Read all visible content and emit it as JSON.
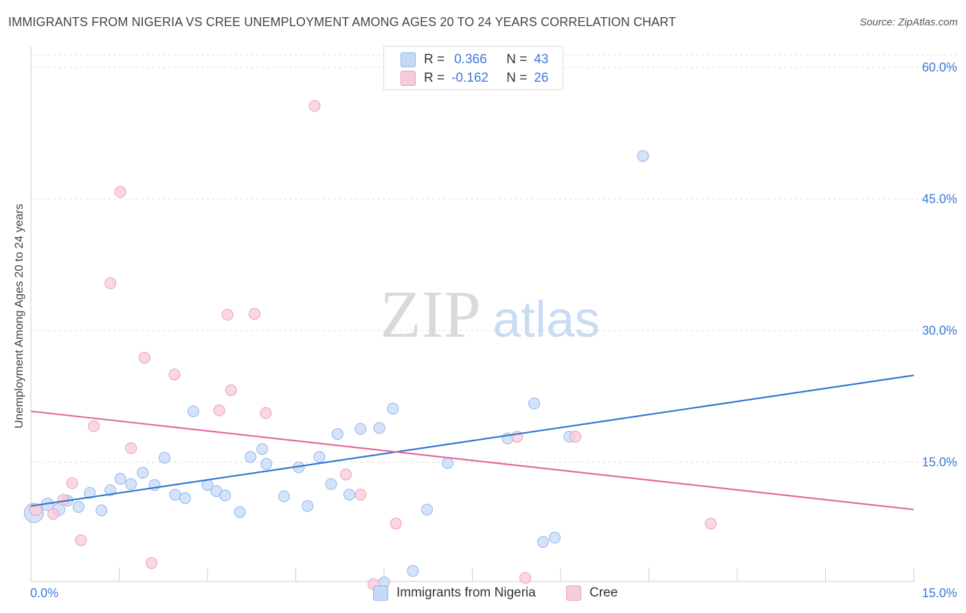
{
  "header": {
    "title": "IMMIGRANTS FROM NIGERIA VS CREE UNEMPLOYMENT AMONG AGES 20 TO 24 YEARS CORRELATION CHART",
    "source": "Source: ZipAtlas.com"
  },
  "watermark": {
    "zip": "ZIP",
    "atlas": "atlas"
  },
  "legend": {
    "rows": [
      {
        "r_label": "R =",
        "r_value": "0.366",
        "n_label": "N =",
        "n_value": "43"
      },
      {
        "r_label": "R =",
        "r_value": "-0.162",
        "n_label": "N =",
        "n_value": "26"
      }
    ]
  },
  "colors": {
    "blue_fill": "#c6daf7",
    "blue_stroke": "#8db4e8",
    "blue_line": "#2f74d0",
    "pink_fill": "#f8cbd9",
    "pink_stroke": "#ec9cb5",
    "pink_line": "#e3689a",
    "tick_text": "#3c78d8",
    "grid": "#dddddd"
  },
  "chart_data": {
    "type": "scatter",
    "title": "IMMIGRANTS FROM NIGERIA VS CREE UNEMPLOYMENT AMONG AGES 20 TO 24 YEARS CORRELATION CHART",
    "xlabel": "",
    "ylabel": "Unemployment Among Ages 20 to 24 years",
    "xlim": [
      0,
      15
    ],
    "ylim": [
      0,
      60
    ],
    "x_tick_labels": [
      "0.0%",
      "15.0%"
    ],
    "y_tick_labels": [
      "15.0%",
      "30.0%",
      "45.0%",
      "60.0%"
    ],
    "y_ticks": [
      15,
      30,
      45,
      60
    ],
    "grid": true,
    "legend_position": "bottom",
    "series": [
      {
        "name": "Immigrants from Nigeria",
        "color": "blue",
        "points": [
          [
            0.05,
            9.2,
            14
          ],
          [
            0.28,
            10.2,
            9
          ],
          [
            0.47,
            9.6,
            9
          ],
          [
            0.62,
            10.6,
            8
          ],
          [
            0.81,
            9.9,
            8
          ],
          [
            1.0,
            11.5,
            8
          ],
          [
            1.2,
            9.5,
            8
          ],
          [
            1.35,
            11.8,
            8
          ],
          [
            1.52,
            13.1,
            8
          ],
          [
            1.7,
            12.5,
            8
          ],
          [
            1.9,
            13.8,
            8
          ],
          [
            2.1,
            12.4,
            8
          ],
          [
            2.27,
            15.5,
            8
          ],
          [
            2.45,
            11.3,
            8
          ],
          [
            2.62,
            10.9,
            8
          ],
          [
            2.76,
            20.8,
            8
          ],
          [
            3.0,
            12.4,
            8
          ],
          [
            3.15,
            11.7,
            8
          ],
          [
            3.3,
            11.2,
            8
          ],
          [
            3.55,
            9.3,
            8
          ],
          [
            3.73,
            15.6,
            8
          ],
          [
            3.93,
            16.5,
            8
          ],
          [
            4.0,
            14.8,
            8
          ],
          [
            4.3,
            11.1,
            8
          ],
          [
            4.55,
            14.4,
            8
          ],
          [
            4.7,
            10.0,
            8
          ],
          [
            4.9,
            15.6,
            8
          ],
          [
            5.1,
            12.5,
            8
          ],
          [
            5.21,
            18.2,
            8
          ],
          [
            5.41,
            11.3,
            8
          ],
          [
            5.6,
            18.8,
            8
          ],
          [
            5.92,
            18.9,
            8
          ],
          [
            6.0,
            1.3,
            8
          ],
          [
            6.15,
            21.1,
            8
          ],
          [
            6.49,
            2.6,
            8
          ],
          [
            6.73,
            9.6,
            8
          ],
          [
            7.08,
            14.9,
            8
          ],
          [
            8.1,
            17.7,
            8
          ],
          [
            8.55,
            21.7,
            8
          ],
          [
            8.7,
            5.9,
            8
          ],
          [
            8.9,
            6.4,
            8
          ],
          [
            9.15,
            17.9,
            8
          ],
          [
            10.4,
            49.9,
            8
          ]
        ]
      },
      {
        "name": "Cree",
        "color": "pink",
        "points": [
          [
            0.08,
            9.6,
            9
          ],
          [
            0.38,
            9.1,
            8
          ],
          [
            0.55,
            10.7,
            8
          ],
          [
            0.7,
            12.6,
            8
          ],
          [
            0.85,
            6.1,
            8
          ],
          [
            1.07,
            19.1,
            8
          ],
          [
            1.35,
            35.4,
            8
          ],
          [
            1.52,
            45.8,
            8
          ],
          [
            1.7,
            16.6,
            8
          ],
          [
            1.93,
            26.9,
            8
          ],
          [
            2.05,
            3.5,
            8
          ],
          [
            2.44,
            25.0,
            8
          ],
          [
            3.2,
            20.9,
            8
          ],
          [
            3.34,
            31.8,
            8
          ],
          [
            3.4,
            23.2,
            8
          ],
          [
            3.8,
            31.9,
            8
          ],
          [
            3.99,
            20.6,
            8
          ],
          [
            4.82,
            55.6,
            8
          ],
          [
            5.35,
            13.6,
            8
          ],
          [
            5.6,
            11.3,
            8
          ],
          [
            5.82,
            1.1,
            8
          ],
          [
            6.2,
            8.0,
            8
          ],
          [
            8.26,
            17.9,
            8
          ],
          [
            8.4,
            1.8,
            8
          ],
          [
            9.25,
            17.9,
            8
          ],
          [
            11.55,
            8.0,
            8
          ]
        ]
      }
    ],
    "trend_lines": [
      {
        "series": "Immigrants from Nigeria",
        "x": [
          0,
          15
        ],
        "y": [
          10.0,
          24.9
        ]
      },
      {
        "series": "Cree",
        "x": [
          0,
          15
        ],
        "y": [
          20.8,
          9.6
        ]
      }
    ]
  }
}
